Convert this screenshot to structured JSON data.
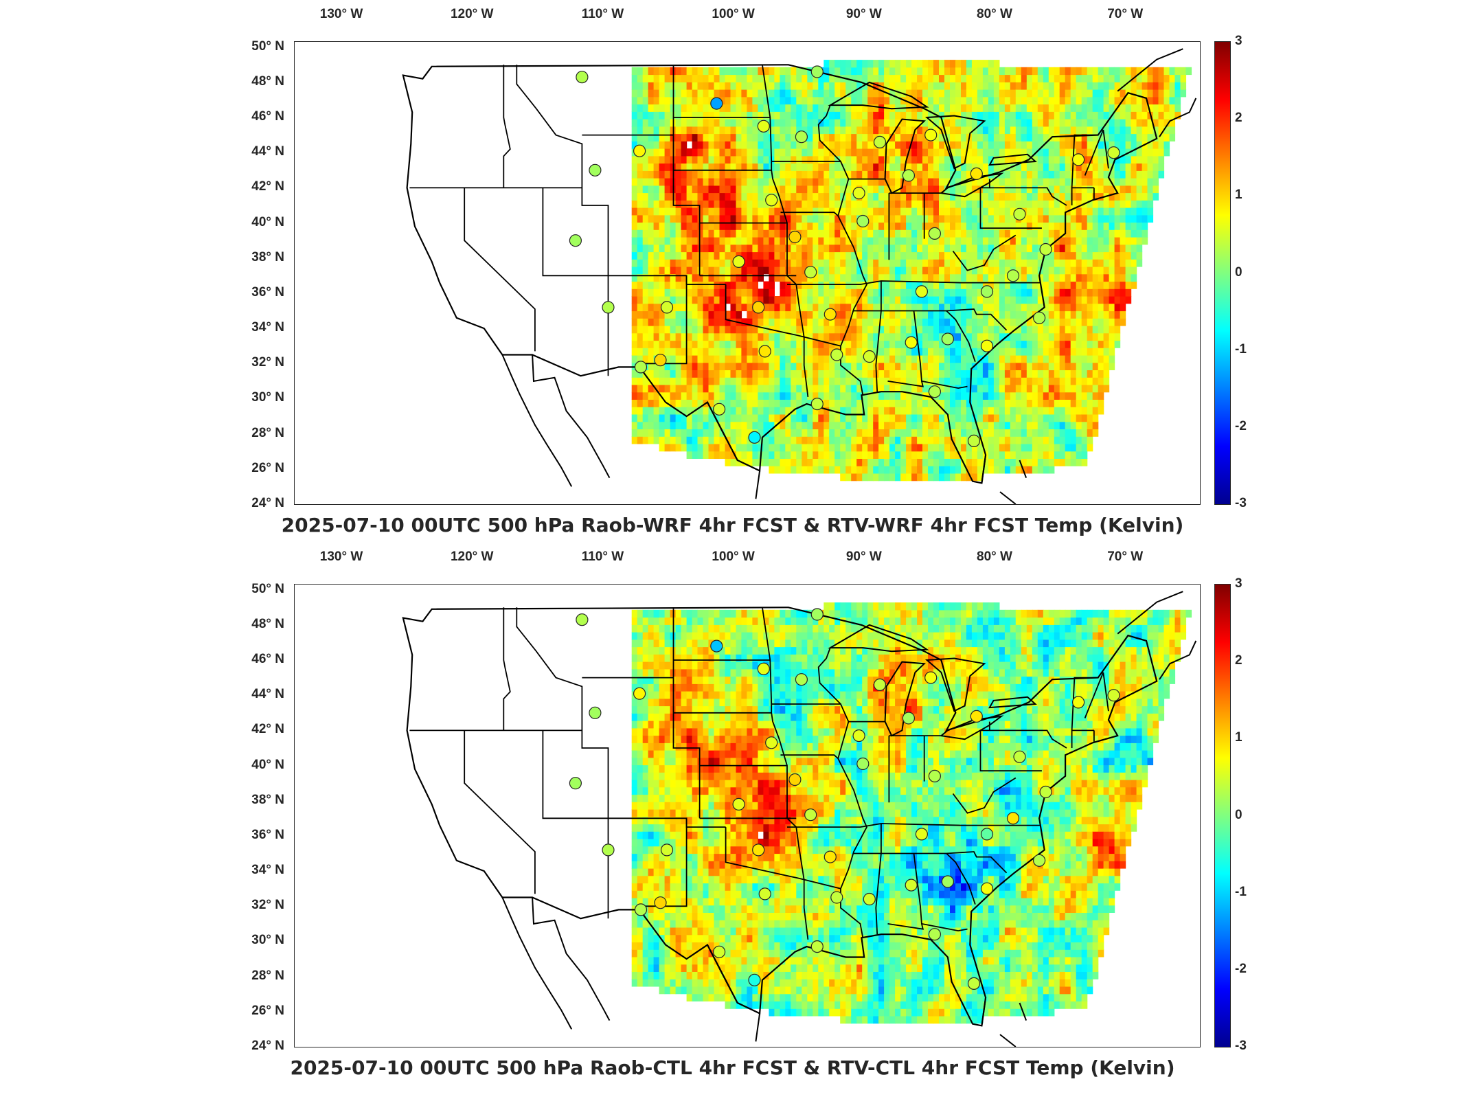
{
  "colors": {
    "colormap": [
      "#00008f",
      "#0000ff",
      "#0080ff",
      "#00ffff",
      "#80ff80",
      "#ffff00",
      "#ff8000",
      "#ff0000",
      "#800000"
    ],
    "station_outline": "#262626",
    "coast": "#000000"
  },
  "panels": [
    {
      "title": "2025-07-10 00UTC 500 hPa Raob-WRF 4hr FCST & RTV-WRF 4hr FCST Temp (Kelvin)",
      "lon_labels": [
        "130° W",
        "120° W",
        "110° W",
        "100° W",
        "90° W",
        "80° W",
        "70° W"
      ],
      "lat_labels": [
        "50° N",
        "48° N",
        "46° N",
        "44° N",
        "42° N",
        "40° N",
        "38° N",
        "36° N",
        "34° N",
        "32° N",
        "30° N",
        "28° N",
        "26° N",
        "24° N"
      ],
      "colorbar_ticks": [
        "3",
        "2",
        "1",
        "0",
        "-1",
        "-2",
        "-3"
      ],
      "colorbar_range": [
        -3,
        3
      ],
      "stations_lonlat_value": [
        [
          -111,
          48.3,
          0.3
        ],
        [
          -100.7,
          46.8,
          -1.3
        ],
        [
          -97.1,
          45.5,
          0.6
        ],
        [
          -94.2,
          44.9,
          0.3
        ],
        [
          -93.0,
          48.6,
          0.2
        ],
        [
          -106.6,
          44.1,
          0.8
        ],
        [
          -110.0,
          43.0,
          0.2
        ],
        [
          -88.2,
          44.6,
          0.4
        ],
        [
          -84.3,
          45.0,
          0.7
        ],
        [
          -89.8,
          41.7,
          0.6
        ],
        [
          -86.0,
          42.7,
          0.3
        ],
        [
          -80.8,
          42.8,
          0.9
        ],
        [
          -73.0,
          43.6,
          0.7
        ],
        [
          -70.3,
          44.0,
          0.5
        ],
        [
          -77.5,
          40.5,
          0.4
        ],
        [
          -94.7,
          39.2,
          1.0
        ],
        [
          -99.0,
          37.8,
          0.6
        ],
        [
          -96.5,
          41.3,
          0.6
        ],
        [
          -89.5,
          40.1,
          0.2
        ],
        [
          -84.0,
          39.4,
          0.3
        ],
        [
          -111.5,
          39.0,
          0.2
        ],
        [
          -109.0,
          35.2,
          0.3
        ],
        [
          -104.5,
          35.2,
          0.5
        ],
        [
          -97.5,
          35.2,
          1.0
        ],
        [
          -93.5,
          37.2,
          0.4
        ],
        [
          -92.0,
          34.8,
          0.9
        ],
        [
          -85.0,
          36.1,
          0.6
        ],
        [
          -80.0,
          36.1,
          0.2
        ],
        [
          -78.0,
          37.0,
          0.3
        ],
        [
          -75.5,
          38.5,
          0.4
        ],
        [
          -105.0,
          32.2,
          1.0
        ],
        [
          -106.5,
          31.8,
          0.3
        ],
        [
          -97.0,
          32.7,
          0.9
        ],
        [
          -91.5,
          32.5,
          0.4
        ],
        [
          -89.0,
          32.4,
          0.5
        ],
        [
          -85.8,
          33.2,
          0.7
        ],
        [
          -83.0,
          33.4,
          0.2
        ],
        [
          -80.0,
          33.0,
          0.7
        ],
        [
          -76.0,
          34.6,
          0.3
        ],
        [
          -93.0,
          29.7,
          0.4
        ],
        [
          -84.0,
          30.4,
          0.3
        ],
        [
          -97.8,
          27.8,
          -0.8
        ],
        [
          -100.5,
          29.4,
          0.5
        ],
        [
          -81.0,
          27.6,
          0.4
        ]
      ]
    },
    {
      "title": "2025-07-10 00UTC 500 hPa Raob-CTL 4hr FCST & RTV-CTL 4hr FCST Temp (Kelvin)",
      "lon_labels": [
        "130° W",
        "120° W",
        "110° W",
        "100° W",
        "90° W",
        "80° W",
        "70° W"
      ],
      "lat_labels": [
        "50° N",
        "48° N",
        "46° N",
        "44° N",
        "42° N",
        "40° N",
        "38° N",
        "36° N",
        "34° N",
        "32° N",
        "30° N",
        "28° N",
        "26° N",
        "24° N"
      ],
      "colorbar_ticks": [
        "3",
        "2",
        "1",
        "0",
        "-1",
        "-2",
        "-3"
      ],
      "colorbar_range": [
        -3,
        3
      ],
      "stations_lonlat_value": [
        [
          -111,
          48.3,
          0.3
        ],
        [
          -100.7,
          46.8,
          -1.1
        ],
        [
          -97.1,
          45.5,
          0.6
        ],
        [
          -94.2,
          44.9,
          0.3
        ],
        [
          -93.0,
          48.6,
          0.2
        ],
        [
          -106.6,
          44.1,
          0.8
        ],
        [
          -110.0,
          43.0,
          0.2
        ],
        [
          -88.2,
          44.6,
          0.4
        ],
        [
          -84.3,
          45.0,
          0.7
        ],
        [
          -89.8,
          41.7,
          0.6
        ],
        [
          -86.0,
          42.7,
          0.2
        ],
        [
          -80.8,
          42.8,
          0.9
        ],
        [
          -73.0,
          43.6,
          0.7
        ],
        [
          -70.3,
          44.0,
          0.5
        ],
        [
          -77.5,
          40.5,
          0.4
        ],
        [
          -94.7,
          39.2,
          1.0
        ],
        [
          -99.0,
          37.8,
          0.6
        ],
        [
          -96.5,
          41.3,
          0.6
        ],
        [
          -89.5,
          40.1,
          0.2
        ],
        [
          -84.0,
          39.4,
          0.3
        ],
        [
          -111.5,
          39.0,
          0.2
        ],
        [
          -109.0,
          35.2,
          0.3
        ],
        [
          -104.5,
          35.2,
          0.5
        ],
        [
          -97.5,
          35.2,
          0.9
        ],
        [
          -93.5,
          37.2,
          0.4
        ],
        [
          -92.0,
          34.8,
          0.9
        ],
        [
          -85.0,
          36.1,
          0.6
        ],
        [
          -80.0,
          36.1,
          -0.2
        ],
        [
          -78.0,
          37.0,
          0.9
        ],
        [
          -75.5,
          38.5,
          0.4
        ],
        [
          -105.0,
          32.2,
          1.0
        ],
        [
          -106.5,
          31.8,
          0.3
        ],
        [
          -97.0,
          32.7,
          0.5
        ],
        [
          -91.5,
          32.5,
          0.4
        ],
        [
          -89.0,
          32.4,
          0.5
        ],
        [
          -85.8,
          33.2,
          0.5
        ],
        [
          -83.0,
          33.4,
          0.2
        ],
        [
          -80.0,
          33.0,
          0.7
        ],
        [
          -76.0,
          34.6,
          0.3
        ],
        [
          -93.0,
          29.7,
          0.4
        ],
        [
          -84.0,
          30.4,
          0.3
        ],
        [
          -97.8,
          27.8,
          -0.6
        ],
        [
          -100.5,
          29.4,
          0.5
        ],
        [
          -81.0,
          27.6,
          0.4
        ]
      ]
    }
  ]
}
